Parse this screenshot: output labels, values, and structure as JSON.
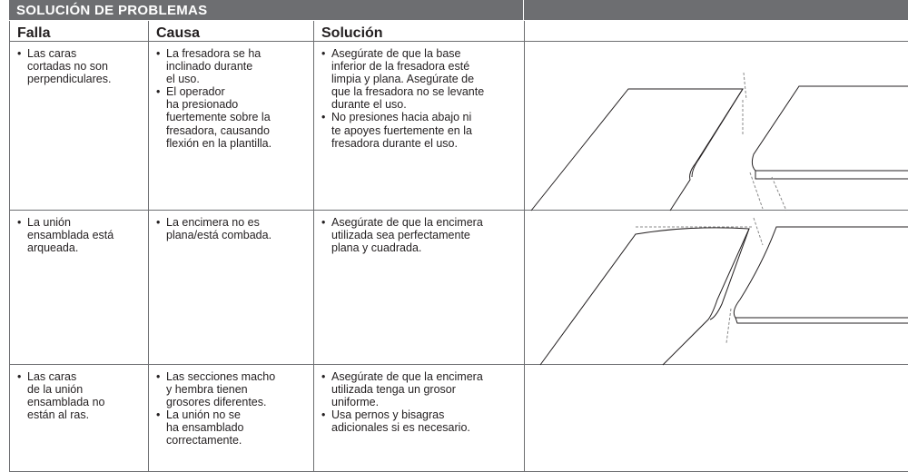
{
  "header": {
    "title": "SOLUCIÓN DE PROBLEMAS"
  },
  "table": {
    "columns": [
      "Falla",
      "Causa",
      "Solución"
    ],
    "rows": [
      [
        [
          [
            "Las caras",
            "cortadas no son",
            "perpendiculares."
          ]
        ],
        [
          [
            "La fresadora se ha",
            "inclinado durante",
            "el uso."
          ],
          [
            "El operador",
            "ha presionado",
            "fuertemente sobre la",
            "fresadora, causando",
            "flexión en la plantilla."
          ]
        ],
        [
          [
            "Asegúrate de que la base",
            "inferior de la fresadora esté",
            "limpia y plana. Asegúrate de",
            "que la fresadora no se levante",
            "durante el uso."
          ],
          [
            "No presiones hacia abajo ni",
            "te apoyes fuertemente en la",
            "fresadora durante el uso."
          ]
        ]
      ],
      [
        [
          [
            "La unión",
            "ensamblada está",
            "arqueada."
          ]
        ],
        [
          [
            "La encimera no es",
            "plana/está combada."
          ]
        ],
        [
          [
            "Asegúrate de que la encimera",
            "utilizada sea perfectamente",
            "plana y cuadrada."
          ]
        ]
      ],
      [
        [
          [
            "Las caras",
            "de la unión",
            "ensamblada no",
            "están al ras."
          ]
        ],
        [
          [
            "Las secciones macho",
            "y hembra tienen",
            "grosores diferentes."
          ],
          [
            "La unión no se",
            "ha ensamblado",
            "correctamente."
          ]
        ],
        [
          [
            "Asegúrate de que la encimera",
            "utilizada tenga un grosor",
            "uniforme."
          ],
          [
            "Usa pernos y bisagras",
            "adicionales si es necesario."
          ]
        ]
      ]
    ]
  }
}
